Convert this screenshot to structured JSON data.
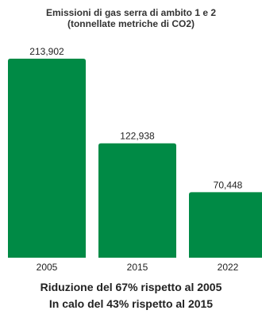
{
  "chart_data": {
    "type": "bar",
    "title": "Emissioni di gas serra di ambito 1 e 2",
    "subtitle": "(tonnellate metriche di CO2)",
    "categories": [
      "2005",
      "2015",
      "2022"
    ],
    "values": [
      213902,
      122938,
      70448
    ],
    "value_labels": [
      "213,902",
      "122,938",
      "70,448"
    ],
    "ylim": [
      0,
      213902
    ],
    "bar_color": "#008a45",
    "grid": false,
    "legend": "none"
  },
  "footer": {
    "line1": "Riduzione del 67% rispetto al 2005",
    "line2": "In calo del 43% rispetto al 2015"
  }
}
